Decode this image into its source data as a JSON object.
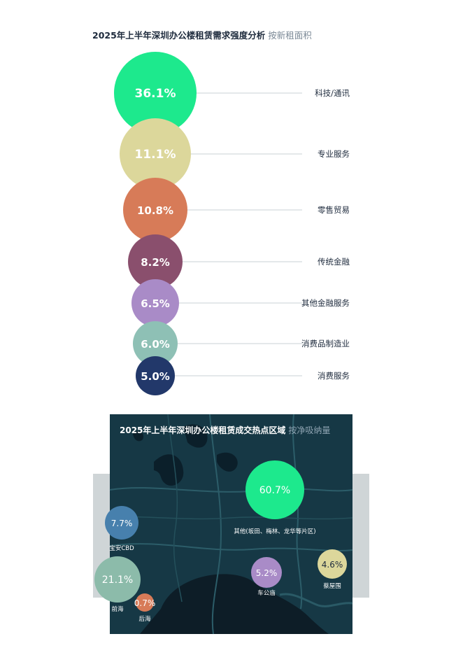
{
  "colors": {
    "tech": "#1de98d",
    "professional": "#dcd79b",
    "retail": "#d77b58",
    "trad_finance": "#8a4f6d",
    "other_finance": "#a98bc7",
    "manufacturing": "#8ec0b5",
    "consumer": "#22386a",
    "map_bg": "#163845",
    "side_panel": "#cfd5d7",
    "baoan": "#4780ad",
    "qianhai": "#8cbbaa",
    "houhai": "#d77b58",
    "other_area": "#1de98d",
    "chegongmiao": "#a98bc7",
    "caiwuwei": "#dcd79b"
  },
  "chart_data": [
    {
      "type": "bubble",
      "title": "2025年上半年深圳办公楼租赁需求强度分析",
      "subtitle": "按新租面积",
      "categories": [
        "科技/通讯",
        "专业服务",
        "零售贸易",
        "传统金融",
        "其他金融服务",
        "消费品制造业",
        "消费服务"
      ],
      "values": [
        36.1,
        11.1,
        10.8,
        8.2,
        6.5,
        6.0,
        5.0
      ],
      "labels": [
        "36.1%",
        "11.1%",
        "10.8%",
        "8.2%",
        "6.5%",
        "6.0%",
        "5.0%"
      ],
      "color_keys": [
        "tech",
        "professional",
        "retail",
        "trad_finance",
        "other_finance",
        "manufacturing",
        "consumer"
      ]
    },
    {
      "type": "bubble",
      "title": "2025年上半年深圳办公楼租赁成交热点区域",
      "subtitle": "按净吸纳量",
      "categories": [
        "其他(坂田、梅林、龙华等片区)",
        "宝安CBD",
        "前海",
        "后海",
        "车公庙",
        "蔡屋围"
      ],
      "values": [
        60.7,
        7.7,
        21.1,
        0.7,
        5.2,
        4.6
      ],
      "labels": [
        "60.7%",
        "7.7%",
        "21.1%",
        "0.7%",
        "5.2%",
        "4.6%"
      ],
      "color_keys": [
        "other_area",
        "baoan",
        "qianhai",
        "houhai",
        "chegongmiao",
        "caiwuwei"
      ]
    }
  ]
}
